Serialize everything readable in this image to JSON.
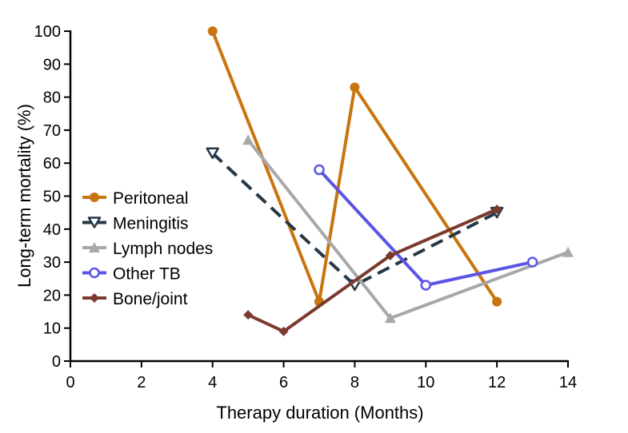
{
  "chart_data": {
    "type": "line",
    "title": "",
    "xlabel": "Therapy duration (Months)",
    "ylabel": "Long-term mortality (%)",
    "xlim": [
      0,
      14
    ],
    "ylim": [
      0,
      100
    ],
    "xticks": [
      0,
      2,
      4,
      6,
      8,
      10,
      12,
      14
    ],
    "yticks": [
      0,
      10,
      20,
      30,
      40,
      50,
      60,
      70,
      80,
      90,
      100
    ],
    "grid": false,
    "legend_position": "left-middle",
    "series": [
      {
        "name": "Peritoneal",
        "color": "#C8740F",
        "marker": "circle-filled",
        "dash": "solid",
        "x": [
          4,
          7,
          8,
          12
        ],
        "y": [
          100,
          18,
          83,
          18
        ]
      },
      {
        "name": "Meningitis",
        "color": "#263746",
        "marker": "triangle-down-open",
        "dash": "dashed",
        "x": [
          4,
          8,
          12
        ],
        "y": [
          63,
          23,
          45
        ]
      },
      {
        "name": "Lymph nodes",
        "color": "#A8A8A8",
        "marker": "triangle-up-filled",
        "dash": "solid",
        "x": [
          5,
          9,
          14
        ],
        "y": [
          67,
          13,
          33
        ]
      },
      {
        "name": "Other TB",
        "color": "#5B55E6",
        "marker": "circle-open",
        "dash": "solid",
        "x": [
          7,
          10,
          13
        ],
        "y": [
          58,
          23,
          30
        ]
      },
      {
        "name": "Bone/joint",
        "color": "#7A3B2E",
        "marker": "diamond-filled",
        "dash": "solid",
        "x": [
          5,
          6,
          9,
          12
        ],
        "y": [
          14,
          9,
          32,
          46
        ]
      }
    ]
  }
}
